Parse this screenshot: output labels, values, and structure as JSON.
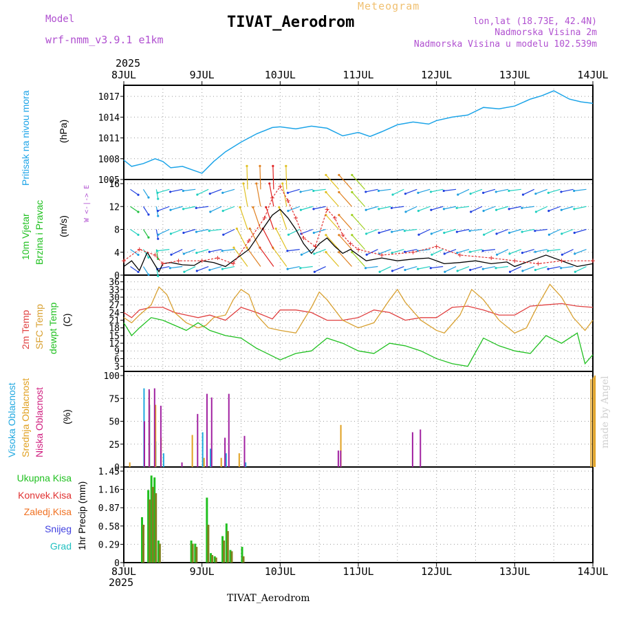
{
  "header": {
    "model_label": "Model",
    "model_name": "wrf-nmm_v3.9.1  e1km",
    "meteogram": "Meteogram",
    "title": "TIVAT_Aerodrom",
    "lonlat": "lon,lat (18.73E, 42.4N)",
    "elev": "Nadmorska Visina 2m",
    "elev_model": "Nadmorska Visina u modelu 102.539m",
    "footer": "TIVAT_Aerodrom",
    "credit": "made by Angel",
    "year_top": "2025",
    "year_bottom": "2025"
  },
  "colors": {
    "pressure": "#1ca4e8",
    "wind_speed": "#000000",
    "gust": "#e03030",
    "t2m": "#e04040",
    "sfc": "#d8a030",
    "dewpt": "#20c020",
    "cloud_high": "#20a8e0",
    "cloud_mid": "#e0a020",
    "cloud_low": "#a020a0",
    "precip_total": "#20c020",
    "precip_conv": "#808020"
  },
  "chart_data": [
    {
      "type": "line",
      "title": "Pritisak na nivou mora",
      "ylabel": "(hPa)",
      "ylim": [
        1005,
        1018
      ],
      "yticks": [
        "1005",
        "1008",
        "1011",
        "1014",
        "1017"
      ],
      "xlabels": [
        "8JUL",
        "9JUL",
        "10JUL",
        "11JUL",
        "12JUL",
        "13JUL",
        "14JUL"
      ],
      "x_days": [
        8.0,
        8.1,
        8.25,
        8.4,
        8.5,
        8.6,
        8.75,
        8.9,
        9.0,
        9.15,
        9.3,
        9.5,
        9.7,
        9.9,
        10.0,
        10.2,
        10.4,
        10.6,
        10.8,
        11.0,
        11.15,
        11.3,
        11.5,
        11.7,
        11.9,
        12.0,
        12.2,
        12.4,
        12.6,
        12.8,
        13.0,
        13.2,
        13.35,
        13.5,
        13.7,
        13.85,
        14.0
      ],
      "values": [
        1007.8,
        1006.9,
        1007.3,
        1008.0,
        1007.6,
        1006.7,
        1006.9,
        1006.3,
        1005.9,
        1007.6,
        1009.0,
        1010.4,
        1011.6,
        1012.5,
        1012.6,
        1012.3,
        1012.7,
        1012.4,
        1011.3,
        1011.8,
        1011.2,
        1011.9,
        1012.9,
        1013.3,
        1013.0,
        1013.5,
        1014.0,
        1014.3,
        1015.4,
        1015.2,
        1015.6,
        1016.6,
        1017.1,
        1017.8,
        1016.6,
        1016.2,
        1016.0
      ],
      "grid": true
    },
    {
      "type": "line",
      "title": "10m Vjetar Brzina i Pravac",
      "ylabel": "(m/s)",
      "ylim": [
        0,
        16
      ],
      "yticks": [
        "0",
        "4",
        "8",
        "12",
        "16"
      ],
      "compass": "W <-|-> E",
      "series": [
        {
          "x_days": [
            8.0,
            8.1,
            8.2,
            8.3,
            8.45,
            8.5,
            8.6,
            8.75,
            8.9,
            9.0,
            9.15,
            9.3,
            9.45,
            9.6,
            9.8,
            9.9,
            10.0,
            10.1,
            10.2,
            10.3,
            10.4,
            10.5,
            10.6,
            10.7,
            10.8,
            10.9,
            11.0,
            11.1,
            11.3,
            11.5,
            11.7,
            11.9,
            12.1,
            12.3,
            12.5,
            12.7,
            12.9,
            13.0,
            13.2,
            13.4,
            13.6,
            13.8,
            14.0
          ],
          "values": [
            1.5,
            2.5,
            0.8,
            4.0,
            0.6,
            2.0,
            2.2,
            1.8,
            1.7,
            2.5,
            2.2,
            1.5,
            3.0,
            4.5,
            8.5,
            10.5,
            11.5,
            10.0,
            8.0,
            5.5,
            3.8,
            5.5,
            6.5,
            5.0,
            3.8,
            4.5,
            3.5,
            2.5,
            3.0,
            2.5,
            2.8,
            3.0,
            2.0,
            2.2,
            2.5,
            2.0,
            2.3,
            1.5,
            2.5,
            3.5,
            2.5,
            1.5,
            2.0
          ]
        },
        {
          "x_days": [
            8.0,
            8.2,
            8.4,
            8.5,
            8.7,
            9.0,
            9.2,
            9.4,
            9.6,
            9.8,
            9.9,
            10.0,
            10.1,
            10.2,
            10.3,
            10.45,
            10.6,
            10.7,
            10.8,
            10.9,
            11.0,
            11.3,
            11.7,
            12.0,
            12.3,
            12.7,
            13.0,
            13.3,
            13.6,
            14.0
          ],
          "values": [
            2.5,
            4.5,
            3.5,
            2.0,
            2.5,
            2.5,
            3.0,
            2.0,
            6.0,
            10.0,
            13.5,
            15.5,
            13.0,
            10.0,
            6.5,
            5.0,
            11.5,
            10.0,
            7.0,
            5.5,
            4.5,
            3.5,
            4.0,
            5.0,
            3.5,
            3.0,
            2.5,
            2.0,
            2.5,
            2.5
          ]
        }
      ]
    },
    {
      "type": "line",
      "title": "2m Temp / SFC Temp / dewpt Temp",
      "ylabel": "(C)",
      "ylim": [
        1,
        37
      ],
      "yticks": [
        "3",
        "6",
        "9",
        "12",
        "15",
        "18",
        "21",
        "24",
        "27",
        "30",
        "33",
        "36"
      ],
      "series": [
        {
          "name": "2m Temp",
          "x_days": [
            8.0,
            8.1,
            8.2,
            8.35,
            8.5,
            8.65,
            8.8,
            8.95,
            9.1,
            9.3,
            9.5,
            9.7,
            9.9,
            10.0,
            10.2,
            10.4,
            10.6,
            10.8,
            11.0,
            11.2,
            11.4,
            11.6,
            11.8,
            12.0,
            12.2,
            12.4,
            12.6,
            12.8,
            13.0,
            13.2,
            13.4,
            13.6,
            13.8,
            14.0
          ],
          "values": [
            24,
            22,
            25,
            26,
            26,
            24,
            23,
            22,
            23,
            21,
            26,
            24,
            21.5,
            25,
            25,
            24,
            21,
            21,
            22,
            25,
            24,
            21,
            22,
            22,
            26,
            26.5,
            25,
            23,
            23,
            26.5,
            27,
            27.5,
            26.5,
            26
          ]
        },
        {
          "name": "SFC Temp",
          "x_days": [
            8.0,
            8.1,
            8.2,
            8.35,
            8.45,
            8.55,
            8.65,
            8.8,
            8.95,
            9.05,
            9.15,
            9.3,
            9.4,
            9.5,
            9.6,
            9.7,
            9.85,
            10.0,
            10.2,
            10.4,
            10.5,
            10.6,
            10.8,
            11.0,
            11.2,
            11.4,
            11.5,
            11.6,
            11.8,
            12.0,
            12.1,
            12.3,
            12.45,
            12.6,
            12.8,
            13.0,
            13.15,
            13.3,
            13.45,
            13.6,
            13.75,
            13.9,
            14.0
          ],
          "values": [
            22,
            20,
            23,
            27,
            34,
            31,
            24,
            20,
            18,
            19,
            22,
            23,
            29,
            33,
            31,
            23,
            18,
            17,
            16,
            26,
            32,
            29,
            21,
            18,
            20,
            29,
            33,
            28,
            21,
            17,
            16,
            23,
            33,
            29,
            21,
            16,
            18,
            27,
            35,
            30,
            22,
            17,
            21
          ]
        },
        {
          "name": "dewpt Temp",
          "x_days": [
            8.0,
            8.1,
            8.2,
            8.35,
            8.5,
            8.65,
            8.8,
            8.95,
            9.1,
            9.3,
            9.5,
            9.7,
            9.9,
            10.0,
            10.2,
            10.4,
            10.6,
            10.8,
            11.0,
            11.2,
            11.4,
            11.6,
            11.8,
            12.0,
            12.2,
            12.4,
            12.6,
            12.8,
            13.0,
            13.2,
            13.4,
            13.6,
            13.8,
            13.9,
            14.0
          ],
          "values": [
            20,
            15,
            18,
            22,
            21,
            19,
            17,
            20,
            17,
            15,
            14,
            10,
            7,
            5.5,
            8,
            9,
            14,
            12,
            9,
            8,
            12,
            11,
            9,
            6,
            4,
            3,
            14,
            11,
            9,
            8,
            15,
            12,
            16,
            4,
            7.5
          ]
        }
      ]
    },
    {
      "type": "bar",
      "title": "Visoka / Srednja / Niska Oblacnost",
      "ylabel": "(%)",
      "ylim": [
        0,
        100
      ],
      "yticks": [
        "0",
        "25",
        "50",
        "75",
        "100"
      ],
      "series": [
        {
          "name": "Visoka Oblacnost",
          "x_days": [
            8.25,
            8.32,
            8.4,
            8.5,
            9.0,
            9.1,
            9.3,
            9.55
          ],
          "values": [
            86,
            68,
            28,
            15,
            38,
            20,
            15,
            5
          ]
        },
        {
          "name": "Srednja Oblacnost",
          "x_days": [
            8.05,
            8.3,
            8.38,
            8.45,
            8.85,
            9.0,
            9.22,
            9.45,
            10.75,
            13.95,
            13.98,
            14.0
          ],
          "values": [
            5,
            83,
            68,
            32,
            35,
            10,
            10,
            15,
            46,
            96,
            98,
            100
          ]
        },
        {
          "name": "Niska Oblacnost",
          "x_days": [
            8.22,
            8.28,
            8.35,
            8.43,
            8.7,
            8.9,
            9.02,
            9.08,
            9.25,
            9.3,
            9.5,
            10.7,
            10.73,
            11.65,
            11.75
          ],
          "values": [
            50,
            85,
            86,
            67,
            5,
            58,
            80,
            76,
            32,
            80,
            34,
            18,
            18,
            38,
            41
          ]
        }
      ]
    },
    {
      "type": "bar",
      "title": "1hr Precip",
      "ylabel": "(mm)",
      "ylim": [
        0,
        1.45
      ],
      "yticks": [
        "0",
        "0.29",
        "0.58",
        "0.87",
        "1.16",
        "1.45"
      ],
      "series": [
        {
          "name": "Ukupna Kisa",
          "x_days": [
            8.22,
            8.3,
            8.34,
            8.38,
            8.43,
            8.85,
            8.9,
            9.05,
            9.1,
            9.15,
            9.25,
            9.3,
            9.35,
            9.5
          ],
          "values": [
            0.72,
            1.15,
            1.38,
            1.35,
            0.35,
            0.35,
            0.3,
            1.03,
            0.15,
            0.1,
            0.42,
            0.62,
            0.2,
            0.25
          ]
        },
        {
          "name": "Konvek.Kisa",
          "x_days": [
            8.22,
            8.3,
            8.34,
            8.38,
            8.43,
            8.85,
            8.9,
            9.05,
            9.1,
            9.15,
            9.25,
            9.3,
            9.35,
            9.5
          ],
          "values": [
            0.6,
            1.0,
            1.2,
            1.1,
            0.3,
            0.3,
            0.25,
            0.6,
            0.12,
            0.08,
            0.35,
            0.5,
            0.18,
            0.1
          ]
        }
      ],
      "legend": [
        "Ukupna Kisa",
        "Konvek.Kisa",
        "Zaledj.Kisa",
        "Snijeg",
        "Grad"
      ]
    }
  ]
}
